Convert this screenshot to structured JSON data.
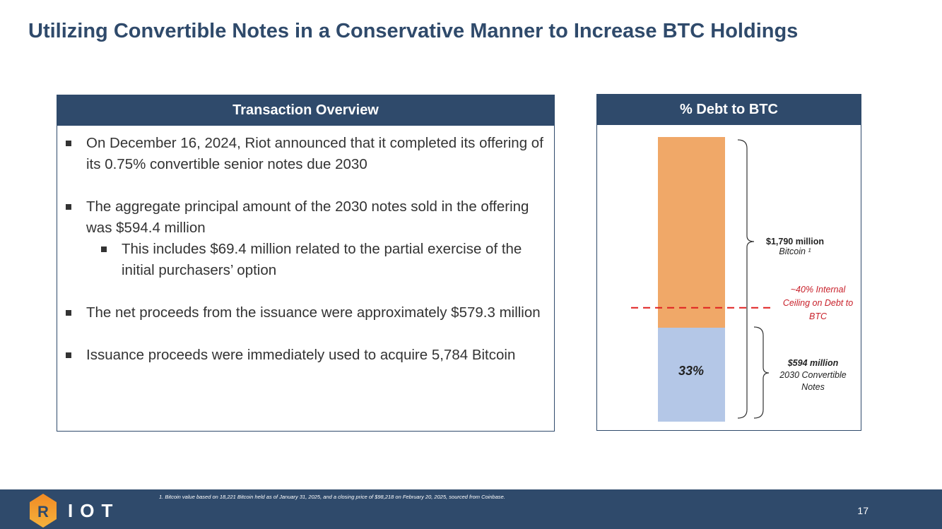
{
  "title": "Utilizing Convertible Notes in a Conservative Manner to Increase BTC Holdings",
  "overview": {
    "header": "Transaction Overview",
    "bullets": [
      "On December 16, 2024, Riot announced that it completed its offering of its 0.75% convertible senior notes due 2030",
      "The aggregate principal amount of the 2030 notes sold in the offering was $594.4 million",
      "This includes $69.4 million related to the partial exercise of the initial purchasers’ option",
      "The net proceeds from the issuance were approximately $579.3 million",
      "Issuance proceeds were immediately used to acquire 5,784 Bitcoin"
    ]
  },
  "chart_panel": {
    "header": "% Debt to BTC"
  },
  "chart_data": {
    "type": "bar",
    "stacked": true,
    "title": "% Debt to BTC",
    "categories": [
      "Debt to BTC"
    ],
    "series": [
      {
        "name": "2030 Convertible Notes",
        "value_musd": 594,
        "share": 33,
        "color": "#b4c7e7"
      },
      {
        "name": "Bitcoin",
        "value_musd": 1790,
        "color": "#f0a868"
      }
    ],
    "data_label": "33%",
    "ceiling_pct": 40,
    "labels": {
      "btc_value": "$1,790 million",
      "btc_name": "Bitcoin ¹",
      "debt_value": "$594 million",
      "debt_name": "2030 Convertible Notes",
      "ceiling": "~40% Internal Ceiling on Debt to BTC"
    }
  },
  "footer": {
    "logo": "RIOT",
    "footnote": "1.      Bitcoin value based on 18,221 Bitcoin held as of January 31, 2025, and a closing price of $98,218 on February 20, 2025, sourced from Coinbase.",
    "page": "17"
  }
}
